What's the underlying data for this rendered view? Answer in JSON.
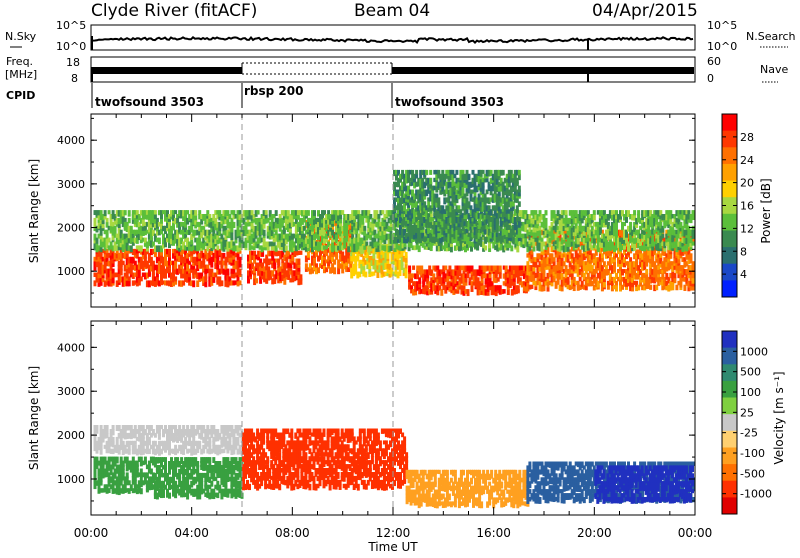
{
  "header": {
    "station": "Clyde River (fitACF)",
    "beam": "Beam 04",
    "date": "04/Apr/2015"
  },
  "top_panels": {
    "nsky_label": "N.Sky",
    "nsky_ticks": [
      "10^5",
      "10^0"
    ],
    "nsearch_label": "N.Search",
    "nsearch_ticks": [
      "10^5",
      "10^0"
    ],
    "freq_label_1": "Freq.",
    "freq_label_2": "[MHz]",
    "freq_ticks": [
      "18",
      "8"
    ],
    "nave_label": "Nave",
    "nave_ticks": [
      "60",
      "0"
    ],
    "cpid_label": "CPID",
    "cpid_segments": [
      {
        "label": "twofsound 3503",
        "start_hour": 0,
        "end_hour": 6
      },
      {
        "label": "rbsp 200",
        "start_hour": 6,
        "end_hour": 12
      },
      {
        "label": "twofsound 3503",
        "start_hour": 12,
        "end_hour": 24
      }
    ]
  },
  "x_axis": {
    "label": "Time UT",
    "ticks": [
      "00:00",
      "04:00",
      "08:00",
      "12:00",
      "16:00",
      "20:00",
      "00:00"
    ],
    "range_hours": [
      0,
      24
    ]
  },
  "power_panel": {
    "ylabel": "Slant Range [km]",
    "yticks": [
      "4000",
      "3000",
      "2000",
      "1000"
    ],
    "colorbar_label": "Power [dB]",
    "colorbar_ticks": [
      "28",
      "24",
      "20",
      "16",
      "12",
      "8",
      "4"
    ],
    "colors": [
      "#0020ff",
      "#1a48c8",
      "#2a6f6f",
      "#3a8a50",
      "#5bbf3a",
      "#a8d840",
      "#ffd000",
      "#ffa000",
      "#ff7000",
      "#ff3800",
      "#ff0000"
    ]
  },
  "velocity_panel": {
    "ylabel": "Slant Range [km]",
    "yticks": [
      "4000",
      "3000",
      "2000",
      "1000"
    ],
    "colorbar_label": "Velocity [m s⁻¹]",
    "colorbar_ticks": [
      "1000",
      "500",
      "100",
      "25",
      "-25",
      "-100",
      "-500",
      "-1000"
    ],
    "colors": [
      "#2030c0",
      "#2a5fa0",
      "#2f8a70",
      "#39a040",
      "#7fd040",
      "#c8c8c8",
      "#ffd070",
      "#ffa020",
      "#ff7000",
      "#ff3000",
      "#e00000"
    ]
  },
  "chart_data": {
    "type": "heatmap",
    "x_unit": "hours UT",
    "y_unit": "km",
    "xlim": [
      0,
      24
    ],
    "ylim": [
      180,
      4600
    ],
    "power_regions": [
      {
        "t0": 0.1,
        "t1": 5.9,
        "r0": 700,
        "r1": 1500,
        "value": 28
      },
      {
        "t0": 6.2,
        "t1": 8.3,
        "r0": 750,
        "r1": 1400,
        "value": 28
      },
      {
        "t0": 8.5,
        "t1": 10.3,
        "r0": 1000,
        "r1": 2100,
        "value": 24
      },
      {
        "t0": 10.3,
        "t1": 12.5,
        "r0": 900,
        "r1": 1600,
        "value": 20
      },
      {
        "t0": 12.6,
        "t1": 17.3,
        "r0": 500,
        "r1": 1100,
        "value": 28
      },
      {
        "t0": 17.3,
        "t1": 23.9,
        "r0": 600,
        "r1": 1900,
        "value": 24
      },
      {
        "t0": 0.1,
        "t1": 23.9,
        "r0": 1500,
        "r1": 2400,
        "value": 12
      },
      {
        "t0": 12.0,
        "t1": 17.0,
        "r0": 1700,
        "r1": 3300,
        "value": 8
      }
    ],
    "velocity_regions": [
      {
        "t0": 0.1,
        "t1": 2.5,
        "r0": 700,
        "r1": 1500,
        "value": 100
      },
      {
        "t0": 0.1,
        "t1": 6.0,
        "r0": 1600,
        "r1": 2200,
        "value": 25
      },
      {
        "t0": 2.5,
        "t1": 6.0,
        "r0": 600,
        "r1": 1500,
        "value": 100
      },
      {
        "t0": 6.0,
        "t1": 12.5,
        "r0": 800,
        "r1": 2100,
        "value": -500
      },
      {
        "t0": 12.5,
        "t1": 17.3,
        "r0": 400,
        "r1": 1200,
        "value": -100
      },
      {
        "t0": 17.3,
        "t1": 23.9,
        "r0": 500,
        "r1": 1400,
        "value": 500
      },
      {
        "t0": 20.0,
        "t1": 23.9,
        "r0": 500,
        "r1": 1300,
        "value": 1000
      }
    ]
  }
}
